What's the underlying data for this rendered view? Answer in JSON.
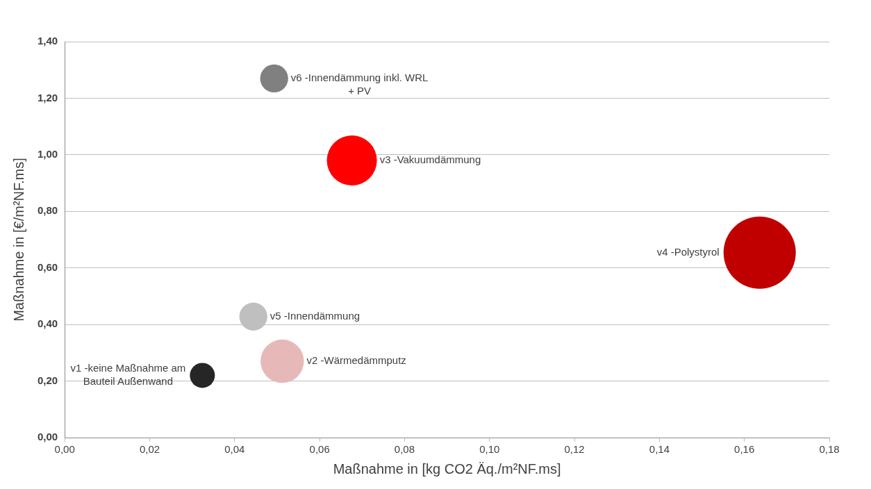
{
  "chart_data": {
    "type": "bubble",
    "xlabel": "Maßnahme in [kg CO2 Äq./m²NF.ms]",
    "ylabel": "Maßnahme in [€/m²NF.ms]",
    "xlim": [
      0,
      0.18
    ],
    "xticks": [
      {
        "value": 0,
        "label": "0,00"
      },
      {
        "value": 0.02,
        "label": "0,02"
      },
      {
        "value": 0.04,
        "label": "0,04"
      },
      {
        "value": 0.06,
        "label": "0,06"
      },
      {
        "value": 0.08,
        "label": "0,08"
      },
      {
        "value": 0.1,
        "label": "0,10"
      },
      {
        "value": 0.12,
        "label": "0,12"
      },
      {
        "value": 0.14,
        "label": "0,14"
      },
      {
        "value": 0.16,
        "label": "0,16"
      },
      {
        "value": 0.18,
        "label": "0,18"
      }
    ],
    "ylim": [
      0,
      1.4
    ],
    "yticks": [
      {
        "value": 0,
        "label": "0,00"
      },
      {
        "value": 0.2,
        "label": "0,20"
      },
      {
        "value": 0.4,
        "label": "0,40"
      },
      {
        "value": 0.6,
        "label": "0,60"
      },
      {
        "value": 0.8,
        "label": "0,80"
      },
      {
        "value": 1,
        "label": "1,00"
      },
      {
        "value": 1.2,
        "label": "1,20"
      },
      {
        "value": 1.4,
        "label": "1,40"
      }
    ],
    "grid": "y",
    "legend": false,
    "series": [
      {
        "name": "v1 -keine Maßnahme am Bauteil Außenwand",
        "color": "#262626",
        "x": [
          0.0324
        ],
        "values": [
          0.22
        ],
        "sizes": [
          0.12
        ]
      },
      {
        "name": "v2 -Wärmedämmputz",
        "color": "#e6b9b8",
        "x": [
          0.0512
        ],
        "values": [
          0.27
        ],
        "sizes": [
          0.36
        ]
      },
      {
        "name": "v3 -Vakuumdämmung",
        "color": "#ff0000",
        "x": [
          0.0676
        ],
        "values": [
          0.98
        ],
        "sizes": [
          0.48
        ]
      },
      {
        "name": "v4 -Polystyrol",
        "color": "#c00000",
        "x": [
          0.1636
        ],
        "values": [
          0.654
        ],
        "sizes": [
          1
        ]
      },
      {
        "name": "v5 -Innendämmung",
        "color": "#bfbfbf",
        "x": [
          0.0444
        ],
        "values": [
          0.428
        ],
        "sizes": [
          0.15
        ]
      },
      {
        "name": "v6 -Innendämmung inkl. WRL + PV",
        "color": "#808080",
        "x": [
          0.0493
        ],
        "values": [
          1.27
        ],
        "sizes": [
          0.15
        ]
      }
    ]
  }
}
